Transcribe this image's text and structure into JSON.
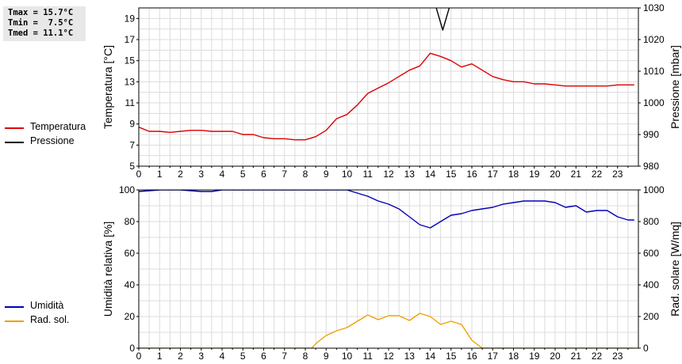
{
  "stats": {
    "tmax": "Tmax = 15.7°C",
    "tmin": "Tmin =  7.5°C",
    "tmed": "Tmed = 11.1°C"
  },
  "legend_top": [
    {
      "label": "Temperatura",
      "color": "#dd0000"
    },
    {
      "label": "Pressione",
      "color": "#000000"
    }
  ],
  "legend_bottom": [
    {
      "label": "Umidità",
      "color": "#0000bb"
    },
    {
      "label": "Rad. sol.",
      "color": "#f0a000"
    }
  ],
  "chart_data": [
    {
      "type": "line",
      "ylabel": "Temperatura [°C]",
      "y2label": "Pressione [mbar]",
      "xlim": [
        0,
        24
      ],
      "ylim": [
        5,
        20
      ],
      "y2lim": [
        980,
        1030
      ],
      "xticks": [
        "0",
        "1",
        "2",
        "3",
        "4",
        "5",
        "6",
        "7",
        "8",
        "9",
        "10",
        "11",
        "12",
        "13",
        "14",
        "15",
        "16",
        "17",
        "18",
        "19",
        "20",
        "21",
        "22",
        "23"
      ],
      "yticks": [
        "5",
        "7",
        "9",
        "11",
        "13",
        "15",
        "17",
        "19"
      ],
      "y2ticks": [
        "980",
        "990",
        "1000",
        "1010",
        "1020",
        "1030"
      ],
      "series": [
        {
          "name": "Temperatura",
          "color": "#dd0000",
          "axis": "left",
          "points": [
            [
              0,
              8.7
            ],
            [
              0.5,
              8.3
            ],
            [
              1,
              8.3
            ],
            [
              1.5,
              8.2
            ],
            [
              2,
              8.3
            ],
            [
              2.5,
              8.4
            ],
            [
              3,
              8.4
            ],
            [
              3.5,
              8.3
            ],
            [
              4,
              8.3
            ],
            [
              4.5,
              8.3
            ],
            [
              5,
              8.0
            ],
            [
              5.5,
              8.0
            ],
            [
              6,
              7.7
            ],
            [
              6.5,
              7.6
            ],
            [
              7,
              7.6
            ],
            [
              7.5,
              7.5
            ],
            [
              8,
              7.5
            ],
            [
              8.5,
              7.8
            ],
            [
              9,
              8.4
            ],
            [
              9.5,
              9.5
            ],
            [
              10,
              9.9
            ],
            [
              10.5,
              10.8
            ],
            [
              11,
              11.9
            ],
            [
              11.5,
              12.4
            ],
            [
              12,
              12.9
            ],
            [
              12.5,
              13.5
            ],
            [
              13,
              14.1
            ],
            [
              13.5,
              14.5
            ],
            [
              14,
              15.7
            ],
            [
              14.5,
              15.4
            ],
            [
              15,
              15.0
            ],
            [
              15.5,
              14.4
            ],
            [
              16,
              14.7
            ],
            [
              16.5,
              14.1
            ],
            [
              17,
              13.5
            ],
            [
              17.5,
              13.2
            ],
            [
              18,
              13.0
            ],
            [
              18.5,
              13.0
            ],
            [
              19,
              12.8
            ],
            [
              19.5,
              12.8
            ],
            [
              20,
              12.7
            ],
            [
              20.5,
              12.6
            ],
            [
              21,
              12.6
            ],
            [
              21.5,
              12.6
            ],
            [
              22,
              12.6
            ],
            [
              22.5,
              12.6
            ],
            [
              23,
              12.7
            ],
            [
              23.5,
              12.7
            ],
            [
              23.8,
              12.7
            ]
          ]
        },
        {
          "name": "Pressione",
          "color": "#000000",
          "axis": "right",
          "points": [
            [
              14.2,
              1032
            ],
            [
              14.6,
              1023
            ],
            [
              15.0,
              1032
            ]
          ]
        }
      ]
    },
    {
      "type": "area",
      "ylabel": "Umidità relativa [%]",
      "y2label": "Rad. solare [W/mq]",
      "xlim": [
        0,
        24
      ],
      "ylim": [
        0,
        100
      ],
      "y2lim": [
        0,
        1000
      ],
      "xticks": [
        "0",
        "1",
        "2",
        "3",
        "4",
        "5",
        "6",
        "7",
        "8",
        "9",
        "10",
        "11",
        "12",
        "13",
        "14",
        "15",
        "16",
        "17",
        "18",
        "19",
        "20",
        "21",
        "22",
        "23"
      ],
      "yticks": [
        "0",
        "20",
        "40",
        "60",
        "80",
        "100"
      ],
      "y2ticks": [
        "0",
        "200",
        "400",
        "600",
        "800",
        "1000"
      ],
      "series": [
        {
          "name": "Umidità",
          "color": "#0000bb",
          "axis": "left",
          "points": [
            [
              0,
              99
            ],
            [
              1,
              100
            ],
            [
              2,
              100
            ],
            [
              3,
              99
            ],
            [
              3.5,
              99
            ],
            [
              4,
              100
            ],
            [
              5,
              100
            ],
            [
              6,
              100
            ],
            [
              7,
              100
            ],
            [
              8,
              100
            ],
            [
              9,
              100
            ],
            [
              10,
              100
            ],
            [
              10.5,
              98
            ],
            [
              11,
              96
            ],
            [
              11.5,
              93
            ],
            [
              12,
              91
            ],
            [
              12.5,
              88
            ],
            [
              13,
              83
            ],
            [
              13.5,
              78
            ],
            [
              14,
              76
            ],
            [
              14.5,
              80
            ],
            [
              15,
              84
            ],
            [
              15.5,
              85
            ],
            [
              16,
              87
            ],
            [
              16.5,
              88
            ],
            [
              17,
              89
            ],
            [
              17.5,
              91
            ],
            [
              18,
              92
            ],
            [
              18.5,
              93
            ],
            [
              19,
              93
            ],
            [
              19.5,
              93
            ],
            [
              20,
              92
            ],
            [
              20.5,
              89
            ],
            [
              21,
              90
            ],
            [
              21.5,
              86
            ],
            [
              22,
              87
            ],
            [
              22.5,
              87
            ],
            [
              23,
              83
            ],
            [
              23.5,
              81
            ],
            [
              23.8,
              81
            ]
          ]
        },
        {
          "name": "Rad. sol.",
          "color": "#f0a000",
          "axis": "right",
          "fill": "#ffffff",
          "points": [
            [
              0,
              0
            ],
            [
              1,
              0
            ],
            [
              2,
              0
            ],
            [
              3,
              0
            ],
            [
              4,
              0
            ],
            [
              5,
              0
            ],
            [
              6,
              0
            ],
            [
              7,
              0
            ],
            [
              8,
              0
            ],
            [
              8.3,
              0
            ],
            [
              8.6,
              40
            ],
            [
              9,
              80
            ],
            [
              9.5,
              110
            ],
            [
              10,
              130
            ],
            [
              10.5,
              170
            ],
            [
              11,
              210
            ],
            [
              11.5,
              180
            ],
            [
              12,
              205
            ],
            [
              12.5,
              205
            ],
            [
              13,
              175
            ],
            [
              13.5,
              220
            ],
            [
              14,
              200
            ],
            [
              14.5,
              150
            ],
            [
              15,
              170
            ],
            [
              15.5,
              150
            ],
            [
              16,
              50
            ],
            [
              16.5,
              0
            ],
            [
              17,
              0
            ],
            [
              18,
              0
            ],
            [
              19,
              0
            ],
            [
              20,
              0
            ],
            [
              21,
              0
            ],
            [
              22,
              0
            ],
            [
              23,
              0
            ],
            [
              23.8,
              0
            ]
          ]
        }
      ]
    }
  ]
}
